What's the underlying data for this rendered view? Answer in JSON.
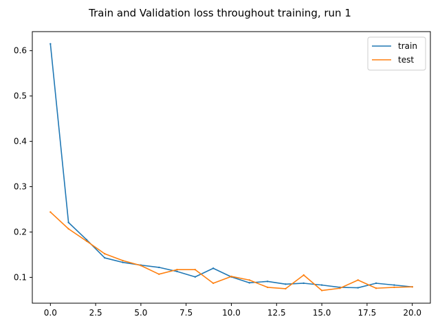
{
  "chart_data": {
    "type": "line",
    "title": "Train and Validation loss throughout training, run 1",
    "xlabel": "",
    "ylabel": "",
    "xlim": [
      -1.0,
      21.0
    ],
    "ylim": [
      0.043,
      0.642
    ],
    "x_ticks": [
      0.0,
      2.5,
      5.0,
      7.5,
      10.0,
      12.5,
      15.0,
      17.5,
      20.0
    ],
    "x_tick_labels": [
      "0.0",
      "2.5",
      "5.0",
      "7.5",
      "10.0",
      "12.5",
      "15.0",
      "17.5",
      "20.0"
    ],
    "y_ticks": [
      0.1,
      0.2,
      0.3,
      0.4,
      0.5,
      0.6
    ],
    "y_tick_labels": [
      "0.1",
      "0.2",
      "0.3",
      "0.4",
      "0.5",
      "0.6"
    ],
    "grid": false,
    "legend": "top-right",
    "x": [
      0,
      1,
      2,
      3,
      4,
      5,
      6,
      7,
      8,
      9,
      10,
      11,
      12,
      13,
      14,
      15,
      16,
      17,
      18,
      19,
      20
    ],
    "series": [
      {
        "name": "train",
        "color": "#1f77b4",
        "values": [
          0.615,
          0.221,
          0.183,
          0.143,
          0.133,
          0.127,
          0.122,
          0.113,
          0.101,
          0.12,
          0.101,
          0.088,
          0.091,
          0.085,
          0.087,
          0.083,
          0.078,
          0.077,
          0.087,
          0.083,
          0.079
        ]
      },
      {
        "name": "test",
        "color": "#ff7f0e",
        "values": [
          0.244,
          0.207,
          0.18,
          0.152,
          0.137,
          0.126,
          0.107,
          0.117,
          0.117,
          0.087,
          0.102,
          0.094,
          0.078,
          0.075,
          0.105,
          0.071,
          0.076,
          0.094,
          0.076,
          0.078,
          0.079
        ]
      }
    ]
  }
}
